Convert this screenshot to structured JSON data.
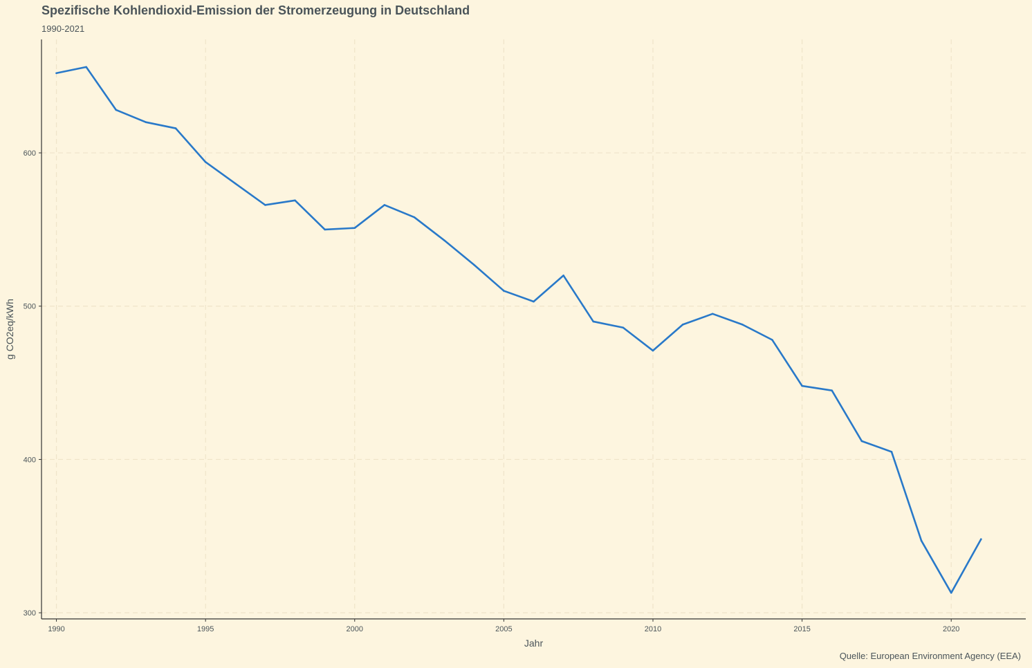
{
  "chart_data": {
    "type": "line",
    "title": "Spezifische Kohlendioxid-Emission der Stromerzeugung in Deutschland",
    "subtitle": "1990-2021",
    "caption": "Quelle: European Environment Agency (EEA)",
    "xlabel": "Jahr",
    "ylabel": "g CO2eq/kWh",
    "xlim": [
      1989.5,
      2022.5
    ],
    "ylim": [
      296,
      674
    ],
    "x_ticks": [
      1990,
      1995,
      2000,
      2005,
      2010,
      2015,
      2020
    ],
    "y_ticks": [
      300,
      400,
      500,
      600
    ],
    "grid": true,
    "colors": {
      "line": "#2979c9",
      "grid": "#efe4c9",
      "axis": "#333333"
    },
    "series": [
      {
        "x": [
          1990,
          1991,
          1992,
          1993,
          1994,
          1995,
          1996,
          1997,
          1998,
          1999,
          2000,
          2001,
          2002,
          2003,
          2004,
          2005,
          2006,
          2007,
          2008,
          2009,
          2010,
          2011,
          2012,
          2013,
          2014,
          2015,
          2016,
          2017,
          2018,
          2019,
          2020,
          2021
        ],
        "values": [
          652,
          656,
          628,
          620,
          616,
          594,
          580,
          566,
          569,
          550,
          551,
          566,
          558,
          543,
          527,
          510,
          503,
          520,
          490,
          486,
          471,
          488,
          495,
          488,
          478,
          448,
          445,
          412,
          405,
          347,
          313,
          348
        ]
      }
    ]
  }
}
